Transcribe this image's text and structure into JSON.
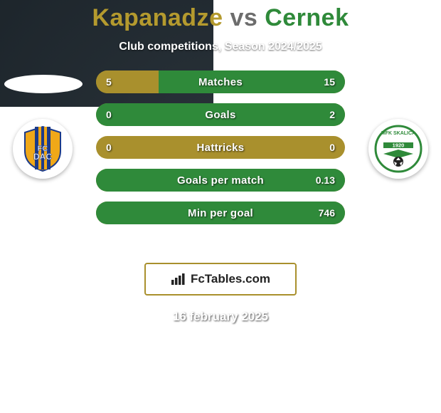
{
  "title": {
    "player1_name": "Kapanadze",
    "player1_color": "#b49a2e",
    "vs_text": "vs",
    "vs_color": "#6d6d6d",
    "player2_name": "Cernek",
    "player2_color": "#2f8a3a",
    "fontsize": 34
  },
  "subtitle": "Club competitions, Season 2024/2025",
  "date_text": "16 february 2025",
  "background": {
    "dark1": "#1a2228",
    "dark2": "#2a333a",
    "band_color": "#3a444c"
  },
  "shadow_ellipse_color": "#ffffff",
  "club_left": {
    "name": "FC DAC",
    "primary_color": "#f0a818",
    "secondary_color": "#1c3b8a"
  },
  "club_right": {
    "name": "MFK Skalica",
    "primary_color": "#2f8a3a",
    "secondary_color": "#ffffff",
    "year": "1920"
  },
  "bars": {
    "neutral_color": "#a9902d",
    "left_color": "#a9902d",
    "right_color": "#2f8a3a",
    "label_fontsize": 15,
    "value_fontsize": 14,
    "rows": [
      {
        "label": "Matches",
        "left_val": "5",
        "right_val": "15",
        "left_pct": 25,
        "right_pct": 75
      },
      {
        "label": "Goals",
        "left_val": "0",
        "right_val": "2",
        "left_pct": 0,
        "right_pct": 100
      },
      {
        "label": "Hattricks",
        "left_val": "0",
        "right_val": "0",
        "left_pct": 0,
        "right_pct": 0
      },
      {
        "label": "Goals per match",
        "left_val": "",
        "right_val": "0.13",
        "left_pct": 0,
        "right_pct": 100
      },
      {
        "label": "Min per goal",
        "left_val": "",
        "right_val": "746",
        "left_pct": 0,
        "right_pct": 100
      }
    ]
  },
  "logo": {
    "text": "FcTables.com",
    "border_color": "#a9902d",
    "bg_color": "#ffffff",
    "text_color": "#222222",
    "icon_color": "#222222"
  }
}
